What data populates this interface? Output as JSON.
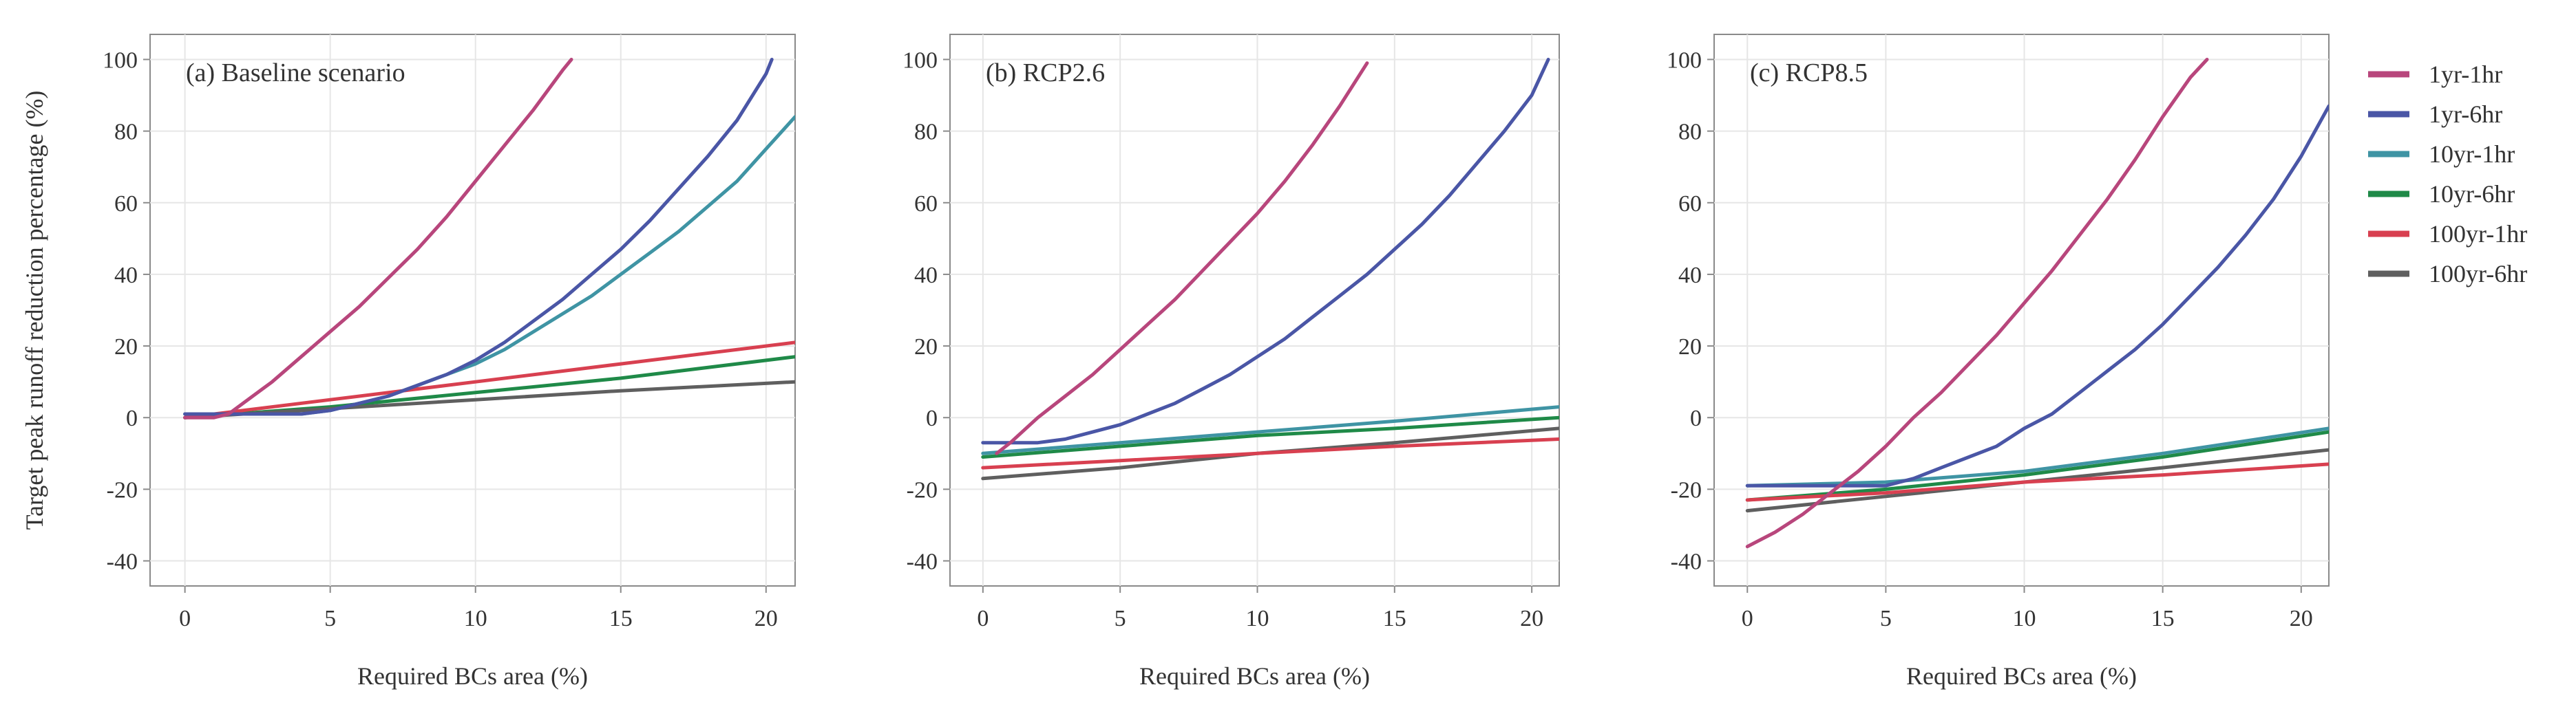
{
  "chart_data": [
    {
      "type": "line",
      "panel_label": "(a) Baseline scenario",
      "xlabel": "Required BCs area (%)",
      "ylabel": "Target peak runoff reduction percentage (%)",
      "xlim": [
        -1.2,
        21
      ],
      "ylim": [
        -47,
        107
      ],
      "xticks": [
        0,
        5,
        10,
        15,
        20
      ],
      "yticks": [
        -40,
        -20,
        0,
        20,
        40,
        60,
        80,
        100
      ],
      "series": [
        {
          "name": "1yr-1hr",
          "x": [
            0,
            1,
            1.5,
            2,
            3,
            4,
            5,
            6,
            7,
            8,
            9,
            10,
            11,
            12,
            13,
            13.3
          ],
          "y": [
            0,
            0,
            1,
            4,
            10,
            17,
            24,
            31,
            39,
            47,
            56,
            66,
            76,
            86,
            97,
            100
          ]
        },
        {
          "name": "1yr-6hr",
          "x": [
            0,
            2,
            4,
            5,
            6,
            7,
            8,
            9,
            10,
            11,
            12,
            13,
            14,
            15,
            16,
            17,
            18,
            19,
            20,
            20.2
          ],
          "y": [
            1,
            1,
            1,
            2,
            4,
            6,
            9,
            12,
            16,
            21,
            27,
            33,
            40,
            47,
            55,
            64,
            73,
            83,
            96,
            100
          ]
        },
        {
          "name": "10yr-1hr",
          "x": [
            0,
            2,
            4,
            5,
            6,
            7,
            8,
            9,
            10,
            11,
            12,
            13,
            14,
            15,
            16,
            17,
            18,
            19,
            20,
            21
          ],
          "y": [
            1,
            1,
            1,
            2,
            4,
            6,
            9,
            12,
            15,
            19,
            24,
            29,
            34,
            40,
            46,
            52,
            59,
            66,
            75,
            84
          ]
        },
        {
          "name": "10yr-6hr",
          "x": [
            0,
            5,
            10,
            15,
            21
          ],
          "y": [
            0,
            3,
            7,
            11,
            17
          ]
        },
        {
          "name": "100yr-1hr",
          "x": [
            0,
            5,
            10,
            15,
            21
          ],
          "y": [
            0,
            5,
            10,
            15,
            21
          ]
        },
        {
          "name": "100yr-6hr",
          "x": [
            0,
            5,
            10,
            15,
            21
          ],
          "y": [
            0,
            2.5,
            5,
            7.5,
            10
          ]
        }
      ]
    },
    {
      "type": "line",
      "panel_label": "(b) RCP2.6",
      "xlabel": "Required BCs area (%)",
      "xlim": [
        -1.2,
        21
      ],
      "ylim": [
        -47,
        107
      ],
      "xticks": [
        0,
        5,
        10,
        15,
        20
      ],
      "yticks": [
        -40,
        -20,
        0,
        20,
        40,
        60,
        80,
        100
      ],
      "series": [
        {
          "name": "1yr-1hr",
          "x": [
            0.5,
            1,
            2,
            3,
            4,
            5,
            6,
            7,
            8,
            9,
            10,
            11,
            12,
            13,
            14
          ],
          "y": [
            -10,
            -7,
            0,
            6,
            12,
            19,
            26,
            33,
            41,
            49,
            57,
            66,
            76,
            87,
            99
          ]
        },
        {
          "name": "1yr-6hr",
          "x": [
            0,
            2,
            3,
            4,
            5,
            6,
            7,
            8,
            9,
            10,
            11,
            12,
            13,
            14,
            15,
            16,
            17,
            18,
            19,
            20,
            20.6
          ],
          "y": [
            -7,
            -7,
            -6,
            -4,
            -2,
            1,
            4,
            8,
            12,
            17,
            22,
            28,
            34,
            40,
            47,
            54,
            62,
            71,
            80,
            90,
            100
          ]
        },
        {
          "name": "10yr-1hr",
          "x": [
            0,
            5,
            10,
            15,
            21
          ],
          "y": [
            -10,
            -7,
            -4,
            -1,
            3
          ]
        },
        {
          "name": "10yr-6hr",
          "x": [
            0,
            5,
            10,
            15,
            21
          ],
          "y": [
            -11,
            -8,
            -5,
            -3,
            0
          ]
        },
        {
          "name": "100yr-1hr",
          "x": [
            0,
            5,
            10,
            15,
            21
          ],
          "y": [
            -14,
            -12,
            -10,
            -8,
            -6
          ]
        },
        {
          "name": "100yr-6hr",
          "x": [
            0,
            5,
            10,
            15,
            21
          ],
          "y": [
            -17,
            -14,
            -10,
            -7,
            -3
          ]
        }
      ]
    },
    {
      "type": "line",
      "panel_label": "(c) RCP8.5",
      "xlabel": "Required BCs area (%)",
      "xlim": [
        -1.2,
        21
      ],
      "ylim": [
        -47,
        107
      ],
      "xticks": [
        0,
        5,
        10,
        15,
        20
      ],
      "yticks": [
        -40,
        -20,
        0,
        20,
        40,
        60,
        80,
        100
      ],
      "series": [
        {
          "name": "1yr-1hr",
          "x": [
            0,
            1,
            2,
            3,
            4,
            5,
            6,
            7,
            8,
            9,
            10,
            11,
            12,
            13,
            14,
            15,
            16,
            16.6
          ],
          "y": [
            -36,
            -32,
            -27,
            -21,
            -15,
            -8,
            0,
            7,
            15,
            23,
            32,
            41,
            51,
            61,
            72,
            84,
            95,
            100
          ]
        },
        {
          "name": "1yr-6hr",
          "x": [
            0,
            2,
            4,
            5,
            6,
            7,
            8,
            9,
            10,
            11,
            12,
            13,
            14,
            15,
            16,
            17,
            18,
            19,
            20,
            21
          ],
          "y": [
            -19,
            -19,
            -19,
            -19,
            -17,
            -14,
            -11,
            -8,
            -3,
            1,
            7,
            13,
            19,
            26,
            34,
            42,
            51,
            61,
            73,
            87
          ]
        },
        {
          "name": "10yr-1hr",
          "x": [
            0,
            5,
            10,
            15,
            21
          ],
          "y": [
            -19,
            -18,
            -15,
            -10,
            -3
          ]
        },
        {
          "name": "10yr-6hr",
          "x": [
            0,
            5,
            10,
            15,
            21
          ],
          "y": [
            -23,
            -20,
            -16,
            -11,
            -4
          ]
        },
        {
          "name": "100yr-1hr",
          "x": [
            0,
            5,
            10,
            15,
            21
          ],
          "y": [
            -23,
            -21,
            -18,
            -16,
            -13
          ]
        },
        {
          "name": "100yr-6hr",
          "x": [
            0,
            5,
            10,
            15,
            21
          ],
          "y": [
            -26,
            -22,
            -18,
            -14,
            -9
          ]
        }
      ]
    }
  ],
  "legend": [
    {
      "name": "1yr-1hr",
      "color": "#b8467c"
    },
    {
      "name": "1yr-6hr",
      "color": "#4a56a6"
    },
    {
      "name": "10yr-1hr",
      "color": "#3f94a4"
    },
    {
      "name": "10yr-6hr",
      "color": "#1f8a48"
    },
    {
      "name": "100yr-1hr",
      "color": "#d84050"
    },
    {
      "name": "100yr-6hr",
      "color": "#5f5f5f"
    }
  ]
}
